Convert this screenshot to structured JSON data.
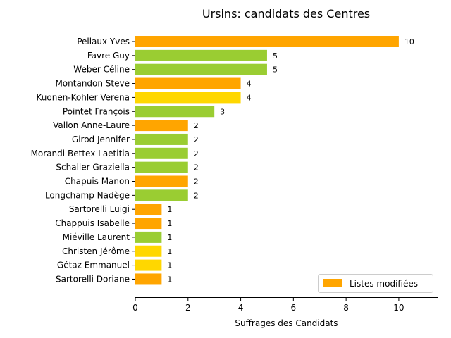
{
  "chart_data": {
    "type": "bar",
    "orientation": "horizontal",
    "title": "Ursins: candidats des Centres",
    "xlabel": "Suffrages des Candidats",
    "ylabel": "",
    "xlim": [
      0,
      11.5
    ],
    "xticks": [
      "0",
      "2",
      "4",
      "6",
      "8",
      "10"
    ],
    "grid": false,
    "legend": {
      "placement": "lower-right",
      "entries": [
        {
          "label": "Listes modifiées",
          "color": "#FFA500"
        }
      ]
    },
    "colors": {
      "orange": "#FFA500",
      "green": "#9ACD32",
      "yellow": "#FFD700"
    },
    "bars": [
      {
        "name": "Pellaux Yves",
        "value": 10,
        "label": "10",
        "color": "#FFA500"
      },
      {
        "name": "Favre Guy",
        "value": 5,
        "label": "5",
        "color": "#9ACD32"
      },
      {
        "name": "Weber Céline",
        "value": 5,
        "label": "5",
        "color": "#9ACD32"
      },
      {
        "name": "Montandon Steve",
        "value": 4,
        "label": "4",
        "color": "#FFA500"
      },
      {
        "name": "Kuonen-Kohler Verena",
        "value": 4,
        "label": "4",
        "color": "#FFD700"
      },
      {
        "name": "Pointet François",
        "value": 3,
        "label": "3",
        "color": "#9ACD32"
      },
      {
        "name": "Vallon Anne-Laure",
        "value": 2,
        "label": "2",
        "color": "#FFA500"
      },
      {
        "name": "Girod Jennifer",
        "value": 2,
        "label": "2",
        "color": "#9ACD32"
      },
      {
        "name": "Morandi-Bettex Laetitia",
        "value": 2,
        "label": "2",
        "color": "#9ACD32"
      },
      {
        "name": "Schaller Graziella",
        "value": 2,
        "label": "2",
        "color": "#9ACD32"
      },
      {
        "name": "Chapuis Manon",
        "value": 2,
        "label": "2",
        "color": "#FFA500"
      },
      {
        "name": "Longchamp Nadège",
        "value": 2,
        "label": "2",
        "color": "#9ACD32"
      },
      {
        "name": "Sartorelli Luigi",
        "value": 1,
        "label": "1",
        "color": "#FFA500"
      },
      {
        "name": "Chappuis Isabelle",
        "value": 1,
        "label": "1",
        "color": "#FFA500"
      },
      {
        "name": "Miéville Laurent",
        "value": 1,
        "label": "1",
        "color": "#9ACD32"
      },
      {
        "name": "Christen Jérôme",
        "value": 1,
        "label": "1",
        "color": "#FFD700"
      },
      {
        "name": "Gétaz Emmanuel",
        "value": 1,
        "label": "1",
        "color": "#FFD700"
      },
      {
        "name": "Sartorelli Doriane",
        "value": 1,
        "label": "1",
        "color": "#FFA500"
      }
    ]
  }
}
